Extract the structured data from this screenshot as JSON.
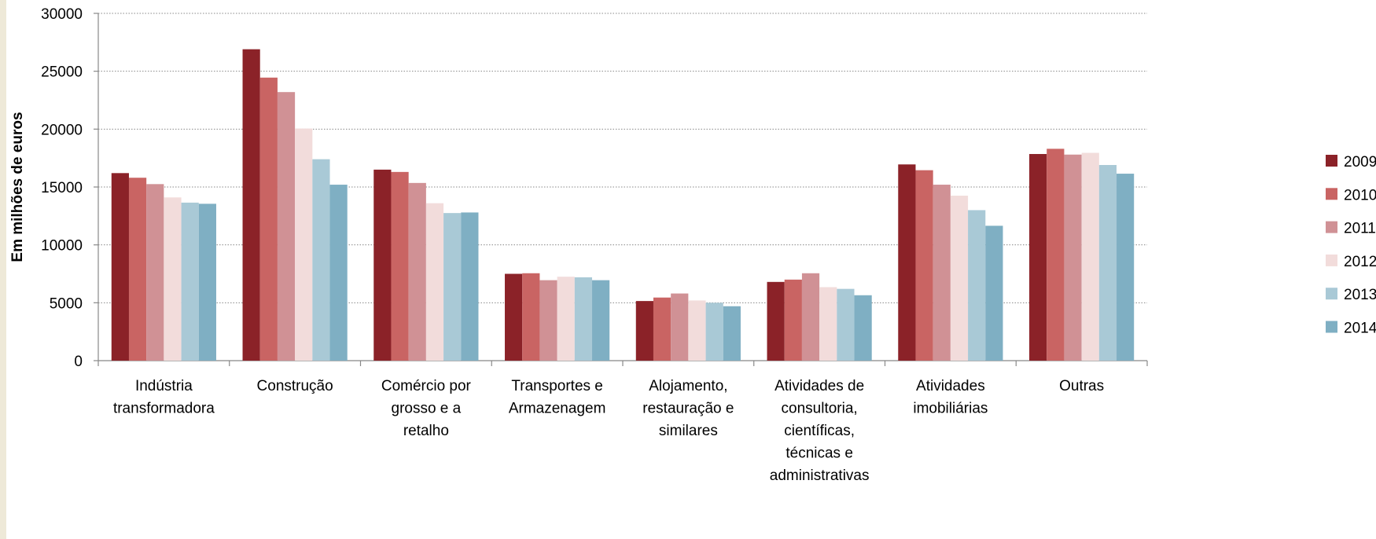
{
  "chart_data": {
    "type": "bar",
    "y_label": "Em milhões de euros",
    "categories": [
      "Indústria transformadora",
      "Construção",
      "Comércio por grosso e a retalho",
      "Transportes e Armazenagem",
      "Alojamento, restauração e similares",
      "Atividades de consultoria, científicas, técnicas e administrativas",
      "Atividades imobiliárias",
      "Outras"
    ],
    "series": [
      {
        "name": "2009",
        "color": "#8b2228",
        "values": [
          16200,
          26900,
          16500,
          7500,
          5150,
          6800,
          16950,
          17850
        ]
      },
      {
        "name": "2010",
        "color": "#c96463",
        "values": [
          15800,
          24450,
          16300,
          7550,
          5450,
          7000,
          16450,
          18300
        ]
      },
      {
        "name": "2011",
        "color": "#d09195",
        "values": [
          15250,
          23200,
          15350,
          6950,
          5800,
          7550,
          15200,
          17800
        ]
      },
      {
        "name": "2012",
        "color": "#f2dcdb",
        "values": [
          14100,
          20050,
          13600,
          7250,
          5200,
          6350,
          14250,
          17950
        ]
      },
      {
        "name": "2013",
        "color": "#a9c9d6",
        "values": [
          13650,
          17400,
          12750,
          7200,
          5000,
          6200,
          13000,
          16900
        ]
      },
      {
        "name": "2014",
        "color": "#7fafc3",
        "values": [
          13550,
          15200,
          12800,
          6950,
          4700,
          5650,
          11650,
          16150
        ]
      }
    ],
    "ylim": [
      0,
      30000
    ],
    "yticks": [
      0,
      5000,
      10000,
      15000,
      20000,
      25000,
      30000
    ],
    "grid": true,
    "legend": "right"
  }
}
